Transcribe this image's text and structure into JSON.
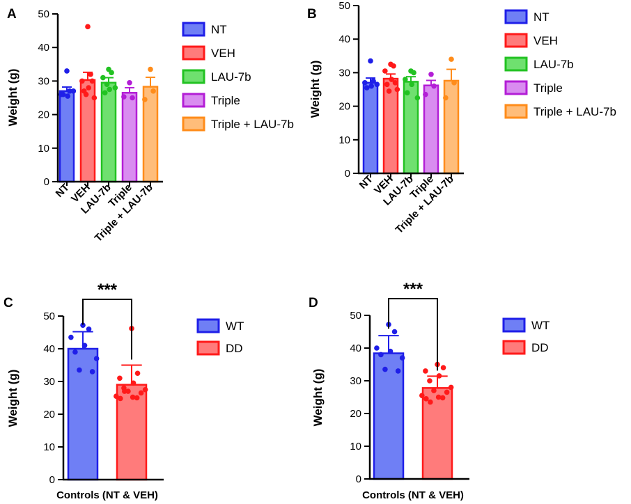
{
  "chart_data": [
    {
      "panel": "A",
      "type": "bar",
      "ylabel": "Weight (g)",
      "ylim": [
        0,
        50
      ],
      "yticks": [
        0,
        10,
        20,
        30,
        40,
        50
      ],
      "categories": [
        "NT",
        "VEH",
        "LAU-7b",
        "Triple",
        "Triple + LAU-7b"
      ],
      "series": [
        {
          "name": "NT",
          "value": 27,
          "sem": 1.2,
          "color": "#1f1fe8",
          "fill": "#6f7ff5",
          "points": [
            33,
            27,
            26,
            25.5,
            26,
            27
          ]
        },
        {
          "name": "VEH",
          "value": 30.3,
          "sem": 2.3,
          "color": "#ff1a1a",
          "fill": "#ff7b7b",
          "points": [
            46.2,
            32,
            30,
            28,
            27,
            25,
            26,
            30
          ]
        },
        {
          "name": "LAU-7b",
          "value": 29.5,
          "sem": 1.5,
          "color": "#22c222",
          "fill": "#6fe06f",
          "points": [
            33.5,
            32.5,
            31,
            27.5,
            26.5,
            28,
            29
          ]
        },
        {
          "name": "Triple",
          "value": 26.5,
          "sem": 1.5,
          "color": "#b31ed6",
          "fill": "#d98cf0",
          "points": [
            29.5,
            25,
            25.3
          ]
        },
        {
          "name": "Triple + LAU-7b",
          "value": 28.3,
          "sem": 2.8,
          "color": "#ff8c1a",
          "fill": "#ffbd7a",
          "points": [
            33.5,
            27,
            24.5
          ]
        }
      ],
      "legend": [
        "NT",
        "VEH",
        "LAU-7b",
        "Triple",
        "Triple + LAU-7b"
      ]
    },
    {
      "panel": "B",
      "type": "bar",
      "ylabel": "Weight (g)",
      "ylim": [
        0,
        50
      ],
      "yticks": [
        0,
        10,
        20,
        30,
        40,
        50
      ],
      "categories": [
        "NT",
        "VEH",
        "LAU-7b",
        "Triple",
        "Triple + LAU-7b"
      ],
      "series": [
        {
          "name": "NT",
          "value": 27,
          "sem": 1.4,
          "color": "#1f1fe8",
          "fill": "#6f7ff5",
          "points": [
            33.5,
            27.5,
            27,
            26,
            25.5,
            26.5
          ]
        },
        {
          "name": "VEH",
          "value": 28.2,
          "sem": 1.4,
          "color": "#ff1a1a",
          "fill": "#ff7b7b",
          "points": [
            32.5,
            32,
            30.5,
            28,
            26.5,
            25,
            24.5,
            27
          ]
        },
        {
          "name": "LAU-7b",
          "value": 27.3,
          "sem": 1.5,
          "color": "#22c222",
          "fill": "#6fe06f",
          "points": [
            30.5,
            30,
            28,
            26.5,
            24,
            22.5
          ]
        },
        {
          "name": "Triple",
          "value": 26.2,
          "sem": 1.5,
          "color": "#b31ed6",
          "fill": "#d98cf0",
          "points": [
            29.5,
            26,
            23.5
          ]
        },
        {
          "name": "Triple + LAU-7b",
          "value": 27.6,
          "sem": 3.4,
          "color": "#ff8c1a",
          "fill": "#ffbd7a",
          "points": [
            34,
            27,
            22.5
          ]
        }
      ],
      "legend": [
        "NT",
        "VEH",
        "LAU-7b",
        "Triple",
        "Triple + LAU-7b"
      ]
    },
    {
      "panel": "C",
      "type": "bar",
      "ylabel": "Weight (g)",
      "xlabel": "Controls (NT & VEH)",
      "ylim": [
        0,
        50
      ],
      "yticks": [
        0,
        10,
        20,
        30,
        40,
        50
      ],
      "categories": [
        "WT",
        "DD"
      ],
      "significance": "***",
      "series": [
        {
          "name": "WT",
          "value": 40,
          "sd": 5.2,
          "color": "#1f1fe8",
          "fill": "#6f7ff5",
          "points": [
            47.2,
            46,
            43.5,
            41,
            39,
            37,
            33.5,
            33
          ]
        },
        {
          "name": "DD",
          "value": 29,
          "sd": 6,
          "color": "#ff1a1a",
          "fill": "#ff7b7b",
          "points": [
            46.2,
            32.5,
            31,
            29.5,
            28,
            27.5,
            27,
            26.5,
            25.5,
            25,
            24.8,
            25.2,
            27
          ]
        }
      ],
      "legend": [
        "WT",
        "DD"
      ]
    },
    {
      "panel": "D",
      "type": "bar",
      "ylabel": "Weight (g)",
      "xlabel": "Controls (NT & VEH)",
      "ylim": [
        0,
        50
      ],
      "yticks": [
        0,
        10,
        20,
        30,
        40,
        50
      ],
      "categories": [
        "WT",
        "DD"
      ],
      "significance": "***",
      "series": [
        {
          "name": "WT",
          "value": 38.4,
          "sd": 5.4,
          "color": "#1f1fe8",
          "fill": "#6f7ff5",
          "points": [
            47.2,
            45,
            40,
            39,
            38,
            37,
            33.5,
            33
          ]
        },
        {
          "name": "DD",
          "value": 27.8,
          "sd": 3.6,
          "color": "#ff1a1a",
          "fill": "#ff7b7b",
          "points": [
            35,
            34,
            33,
            31.5,
            30,
            28,
            27,
            26.5,
            25.5,
            24.8,
            24.5,
            25,
            23.5
          ]
        }
      ],
      "legend": [
        "WT",
        "DD"
      ]
    }
  ]
}
